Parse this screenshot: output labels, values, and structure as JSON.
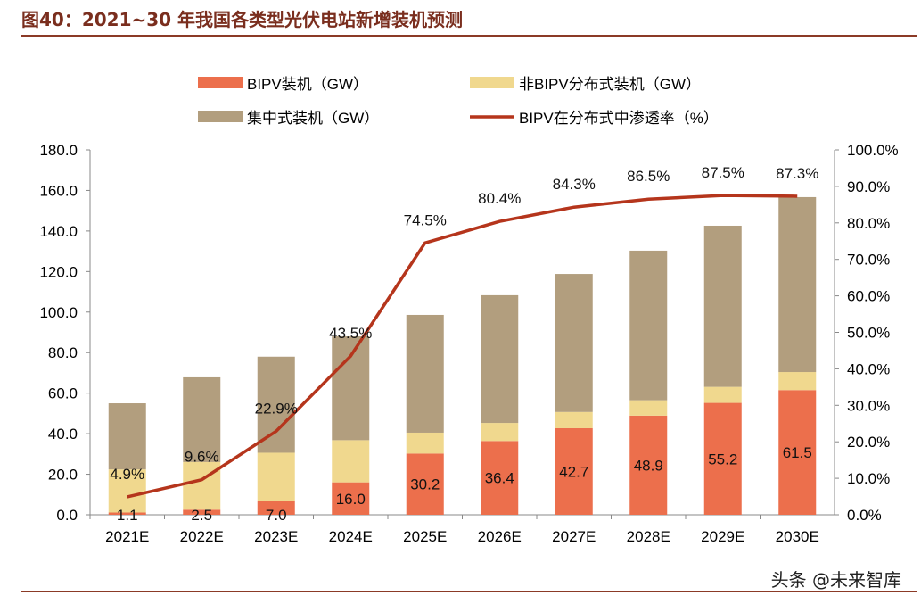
{
  "header": {
    "title": "图40：2021~30 年我国各类型光伏电站新增装机预测"
  },
  "watermark": "头条 @未来智库",
  "chart_data": {
    "type": "bar",
    "stacked": true,
    "categories": [
      "2021E",
      "2022E",
      "2023E",
      "2024E",
      "2025E",
      "2026E",
      "2027E",
      "2028E",
      "2029E",
      "2030E"
    ],
    "series": [
      {
        "name": "BIPV装机（GW）",
        "type": "bar",
        "axis": "left",
        "color": "#ec6f4c",
        "values": [
          1.1,
          2.5,
          7.0,
          16.0,
          30.2,
          36.4,
          42.7,
          48.9,
          55.2,
          61.5
        ],
        "labels": [
          "1.1",
          "2.5",
          "7.0",
          "16.0",
          "30.2",
          "36.4",
          "42.7",
          "48.9",
          "55.2",
          "61.5"
        ]
      },
      {
        "name": "非BIPV分布式装机（GW）",
        "type": "bar",
        "axis": "left",
        "color": "#f0d88e",
        "values": [
          21.3,
          23.5,
          23.6,
          20.8,
          10.3,
          8.9,
          8.0,
          7.6,
          7.9,
          8.9
        ]
      },
      {
        "name": "集中式装机（GW）",
        "type": "bar",
        "axis": "left",
        "color": "#b29e7e",
        "values": [
          32.6,
          41.8,
          47.4,
          51.2,
          58.1,
          63.0,
          68.1,
          73.8,
          79.5,
          86.3
        ]
      },
      {
        "name": "BIPV在分布式中渗透率（%）",
        "type": "line",
        "axis": "right",
        "color": "#b5351c",
        "values": [
          4.9,
          9.6,
          22.9,
          43.5,
          74.5,
          80.4,
          84.3,
          86.5,
          87.5,
          87.3
        ],
        "labels": [
          "4.9%",
          "9.6%",
          "22.9%",
          "43.5%",
          "74.5%",
          "80.4%",
          "84.3%",
          "86.5%",
          "87.5%",
          "87.3%"
        ]
      }
    ],
    "y_left": {
      "range": [
        0,
        180
      ],
      "ticks": [
        "0.0",
        "20.0",
        "40.0",
        "60.0",
        "80.0",
        "100.0",
        "120.0",
        "140.0",
        "160.0",
        "180.0"
      ]
    },
    "y_right": {
      "range": [
        0,
        100
      ],
      "ticks": [
        "0.0%",
        "10.0%",
        "20.0%",
        "30.0%",
        "40.0%",
        "50.0%",
        "60.0%",
        "70.0%",
        "80.0%",
        "90.0%",
        "100.0%"
      ]
    },
    "legend": "top",
    "grid": false
  }
}
